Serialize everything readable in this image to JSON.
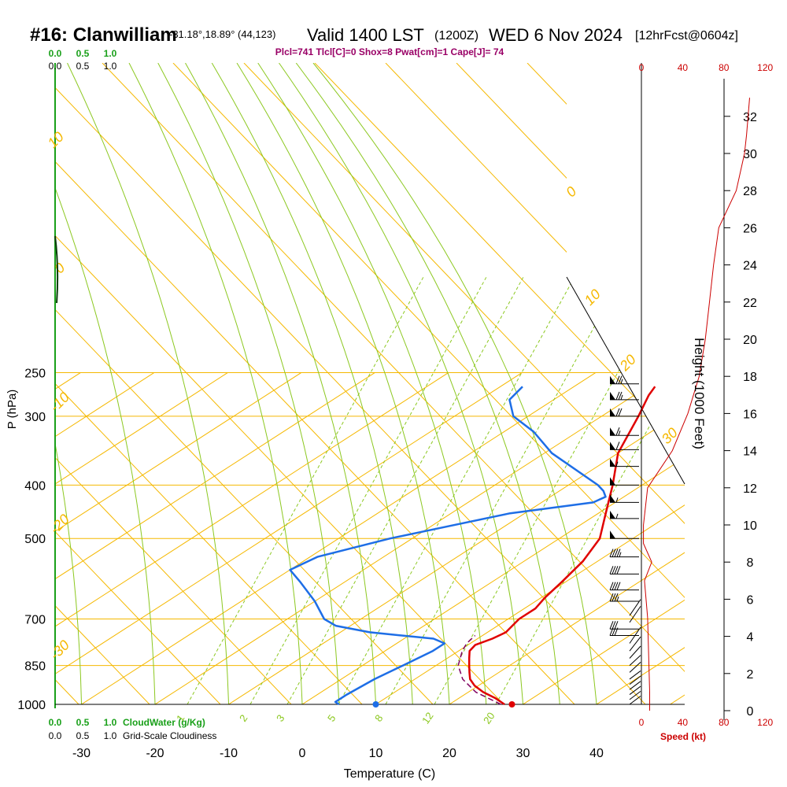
{
  "header": {
    "station": "#16: Clanwilliam",
    "coords": "-31.18°,18.89° (44,123)",
    "valid": "Valid 1400 LST",
    "utc": "(1200Z)",
    "date": "WED 6 Nov 2024",
    "fcst": "[12hrFcst@0604z]",
    "indices": "Plcl=741 Tlcl[C]=0 Shox=8 Pwat[cm]=1 Cape[J]= 74"
  },
  "colors": {
    "isotherm": "#f5b800",
    "dry_adiabat": "#f5b800",
    "moist_adiabat": "#8cc820",
    "mixing_ratio": "#8cc820",
    "temperature": "#e00000",
    "dewpoint": "#1e6ee6",
    "parcel": "#800060",
    "height_profile": "#cc0000",
    "green_axis": "#1aa01a",
    "indices_text": "#990066"
  },
  "chart_data": {
    "type": "skew-t",
    "xlabel": "Temperature (C)",
    "ylabel": "P (hPa)",
    "right_label": "Height (1000 Feet)",
    "temp_ticks": [
      "-30",
      "-20",
      "-10",
      "0",
      "10",
      "20",
      "30",
      "40"
    ],
    "pressure_ticks": [
      "250",
      "300",
      "400",
      "500",
      "700",
      "850",
      "1000"
    ],
    "height_ticks": [
      "0",
      "2",
      "4",
      "6",
      "8",
      "10",
      "12",
      "14",
      "16",
      "18",
      "20",
      "22",
      "24",
      "26",
      "28",
      "30",
      "32"
    ],
    "speed_ticks": [
      "0",
      "40",
      "80",
      "120"
    ],
    "speed_label": "Speed (kt)",
    "cloudwater_ticks": [
      "0.0",
      "0.5",
      "1.0"
    ],
    "cloudwater_label": "CloudWater (g/Kg)",
    "cloudiness_ticks": [
      "0.0",
      "0.5",
      "1.0"
    ],
    "cloudiness_label": "Grid-Scale Cloudiness",
    "mixing_ratio_labels": [
      "1",
      "2",
      "3",
      "5",
      "8",
      "12",
      "20"
    ],
    "dry_adiabat_labels": [
      "0",
      "10",
      "20",
      "30",
      "10",
      "0",
      "-10",
      "-20",
      "-30"
    ],
    "temperature_profile": [
      [
        1000,
        27.5
      ],
      [
        975,
        25
      ],
      [
        950,
        22
      ],
      [
        925,
        19.5
      ],
      [
        900,
        17.5
      ],
      [
        875,
        16
      ],
      [
        850,
        14.5
      ],
      [
        825,
        13
      ],
      [
        800,
        11.5
      ],
      [
        780,
        11
      ],
      [
        760,
        12
      ],
      [
        740,
        12.5
      ],
      [
        720,
        12
      ],
      [
        700,
        11.5
      ],
      [
        670,
        11.5
      ],
      [
        640,
        10.5
      ],
      [
        600,
        9.5
      ],
      [
        550,
        8
      ],
      [
        500,
        5.5
      ],
      [
        450,
        1
      ],
      [
        400,
        -4
      ],
      [
        350,
        -10
      ],
      [
        300,
        -15
      ],
      [
        275,
        -18
      ],
      [
        265,
        -19
      ]
    ],
    "dewpoint_profile": [
      [
        1000,
        5
      ],
      [
        990,
        4
      ],
      [
        960,
        4
      ],
      [
        900,
        4.5
      ],
      [
        850,
        5.5
      ],
      [
        800,
        6.5
      ],
      [
        775,
        6.5
      ],
      [
        760,
        4
      ],
      [
        740,
        -6
      ],
      [
        720,
        -12
      ],
      [
        700,
        -15
      ],
      [
        650,
        -20
      ],
      [
        600,
        -26
      ],
      [
        570,
        -30
      ],
      [
        540,
        -29
      ],
      [
        500,
        -23
      ],
      [
        450,
        -12
      ],
      [
        430,
        -3
      ],
      [
        420,
        -2.5
      ],
      [
        410,
        -4
      ],
      [
        400,
        -6
      ],
      [
        350,
        -19
      ],
      [
        320,
        -26
      ],
      [
        300,
        -32
      ],
      [
        280,
        -36
      ],
      [
        265,
        -37
      ]
    ],
    "parcel_profile": [
      [
        1000,
        27
      ],
      [
        950,
        21
      ],
      [
        900,
        16.5
      ],
      [
        850,
        13
      ],
      [
        800,
        10.5
      ],
      [
        775,
        9.5
      ],
      [
        750,
        9
      ]
    ],
    "surface_temp": 28.5,
    "surface_dewpoint": 10,
    "wind_profile": [
      {
        "p": 1000,
        "speed": 5
      },
      {
        "p": 980,
        "speed": 5
      },
      {
        "p": 960,
        "speed": 5
      },
      {
        "p": 940,
        "speed": 5
      },
      {
        "p": 920,
        "speed": 5
      },
      {
        "p": 900,
        "speed": 5
      },
      {
        "p": 875,
        "speed": 10
      },
      {
        "p": 850,
        "speed": 10
      },
      {
        "p": 825,
        "speed": 15
      },
      {
        "p": 800,
        "speed": 20
      },
      {
        "p": 775,
        "speed": 25
      },
      {
        "p": 750,
        "speed": 30
      },
      {
        "p": 730,
        "speed": 30
      },
      {
        "p": 710,
        "speed": 25
      },
      {
        "p": 690,
        "speed": 25
      },
      {
        "p": 650,
        "speed": 35
      },
      {
        "p": 620,
        "speed": 40
      },
      {
        "p": 580,
        "speed": 40
      },
      {
        "p": 540,
        "speed": 45
      },
      {
        "p": 500,
        "speed": 50
      },
      {
        "p": 460,
        "speed": 55
      },
      {
        "p": 430,
        "speed": 55
      },
      {
        "p": 400,
        "speed": 50
      },
      {
        "p": 370,
        "speed": 55
      },
      {
        "p": 345,
        "speed": 60
      },
      {
        "p": 325,
        "speed": 65
      },
      {
        "p": 300,
        "speed": 70
      },
      {
        "p": 280,
        "speed": 75
      },
      {
        "p": 262,
        "speed": 75
      }
    ]
  }
}
